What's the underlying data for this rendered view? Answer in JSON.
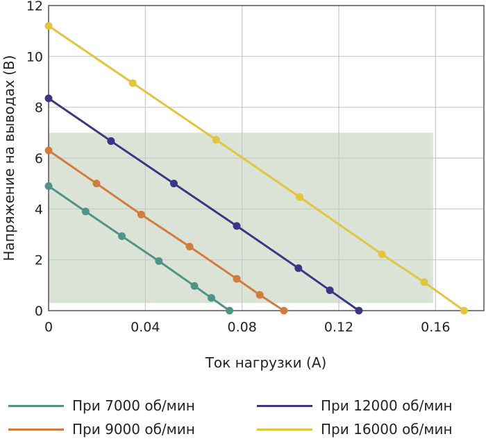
{
  "chart_data": {
    "type": "line",
    "xlabel": "Ток нагрузки (А)",
    "ylabel": "Напряжение на выводах (В)",
    "xlim": [
      0,
      0.18
    ],
    "ylim": [
      0,
      12
    ],
    "x_ticks": [
      0,
      0.04,
      0.08,
      0.12,
      0.16
    ],
    "x_tick_labels": [
      "0",
      "0.04",
      "0.08",
      "0.12",
      "0.16"
    ],
    "y_ticks": [
      0,
      2,
      4,
      6,
      8,
      10,
      12
    ],
    "y_tick_labels": [
      "0",
      "2",
      "4",
      "6",
      "8",
      "10",
      "12"
    ],
    "grid": true,
    "legend_position": "bottom",
    "shaded_region": {
      "x": [
        0,
        0.159
      ],
      "y": [
        0.3,
        7.0
      ],
      "color": "#dbe3d6"
    },
    "series": [
      {
        "name": "При 7000 об/мин",
        "color": "#4e9383",
        "x": [
          0,
          0.0153,
          0.0303,
          0.0456,
          0.0603,
          0.0673,
          0.0748
        ],
        "y": [
          4.9,
          3.9,
          2.93,
          1.95,
          0.97,
          0.5,
          0
        ]
      },
      {
        "name": "При 9000 об/мин",
        "color": "#d17c3f",
        "x": [
          0,
          0.0198,
          0.0383,
          0.0583,
          0.0778,
          0.0873,
          0.0973
        ],
        "y": [
          6.3,
          5.0,
          3.78,
          2.52,
          1.25,
          0.62,
          0
        ]
      },
      {
        "name": "При 12000 об/мин",
        "color": "#3a3585",
        "x": [
          0,
          0.0258,
          0.0518,
          0.0778,
          0.1033,
          0.1163,
          0.1283
        ],
        "y": [
          8.35,
          6.67,
          5.0,
          3.33,
          1.67,
          0.8,
          0
        ]
      },
      {
        "name": "При 16000 об/мин",
        "color": "#e2c43e",
        "x": [
          0,
          0.0348,
          0.0693,
          0.1038,
          0.1378,
          0.1553,
          0.1718
        ],
        "y": [
          11.2,
          8.95,
          6.72,
          4.47,
          2.22,
          1.12,
          0
        ]
      }
    ]
  }
}
